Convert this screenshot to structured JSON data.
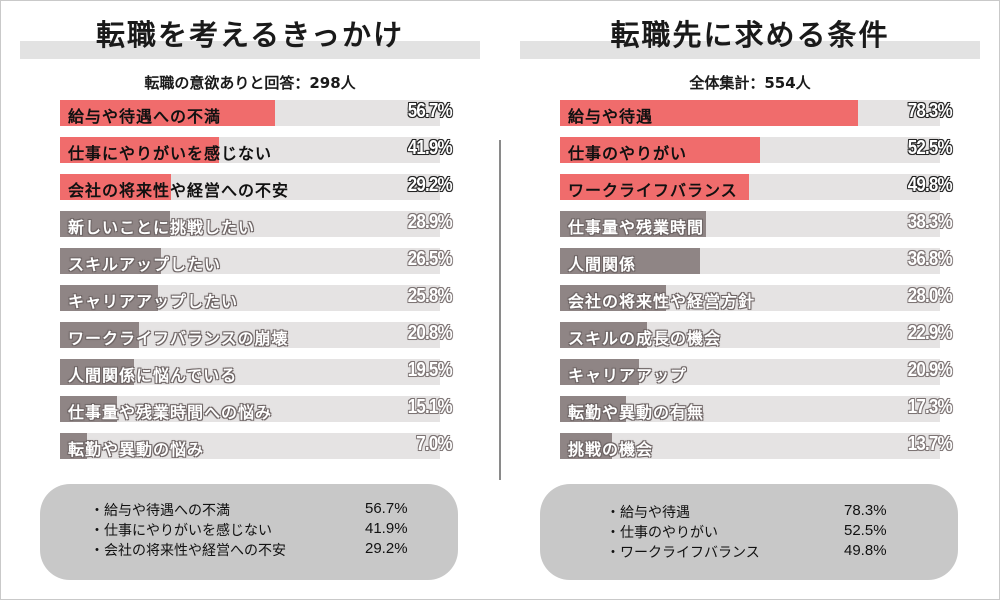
{
  "colors": {
    "highlight": "#f06c6c",
    "normal": "#8f8585",
    "track": "#e5e3e3",
    "summary_bg": "#c8c8c8"
  },
  "left": {
    "title": "転職を考えるきっかけ",
    "subtitle": "転職の意欲ありと回答：298人",
    "summary": [
      {
        "label": "・給与や待遇への不満",
        "value": "56.7%"
      },
      {
        "label": "・仕事にやりがいを感じない",
        "value": "41.9%"
      },
      {
        "label": "・会社の将来性や経営への不安",
        "value": "29.2%"
      }
    ]
  },
  "right": {
    "title": "転職先に求める条件",
    "subtitle": "全体集計：554人",
    "summary": [
      {
        "label": "・給与や待遇",
        "value": "78.3%"
      },
      {
        "label": "・仕事のやりがい",
        "value": "52.5%"
      },
      {
        "label": "・ワークライフバランス",
        "value": "49.8%"
      }
    ]
  },
  "chart_data": [
    {
      "type": "bar",
      "orientation": "horizontal",
      "title": "転職を考えるきっかけ",
      "subtitle": "転職の意欲ありと回答：298人",
      "unit": "%",
      "xlim": [
        0,
        100
      ],
      "highlight_top": 3,
      "categories": [
        "給与や待遇への不満",
        "仕事にやりがいを感じない",
        "会社の将来性や経営への不安",
        "新しいことに挑戦したい",
        "スキルアップしたい",
        "キャリアアップしたい",
        "ワークライフバランスの崩壊",
        "人間関係に悩んでいる",
        "仕事量や残業時間への悩み",
        "転勤や異動の悩み"
      ],
      "values": [
        56.7,
        41.9,
        29.2,
        28.9,
        26.5,
        25.8,
        20.8,
        19.5,
        15.1,
        7.0
      ],
      "labels": [
        "56.7%",
        "41.9%",
        "29.2%",
        "28.9%",
        "26.5%",
        "25.8%",
        "20.8%",
        "19.5%",
        "15.1%",
        "7.0%"
      ]
    },
    {
      "type": "bar",
      "orientation": "horizontal",
      "title": "転職先に求める条件",
      "subtitle": "全体集計：554人",
      "unit": "%",
      "xlim": [
        0,
        100
      ],
      "highlight_top": 3,
      "categories": [
        "給与や待遇",
        "仕事のやりがい",
        "ワークライフバランス",
        "仕事量や残業時間",
        "人間関係",
        "会社の将来性や経営方針",
        "スキルの成長の機会",
        "キャリアアップ",
        "転勤や異動の有無",
        "挑戦の機会"
      ],
      "values": [
        78.3,
        52.5,
        49.8,
        38.3,
        36.8,
        28.0,
        22.9,
        20.9,
        17.3,
        13.7
      ],
      "labels": [
        "78.3%",
        "52.5%",
        "49.8%",
        "38.3%",
        "36.8%",
        "28.0%",
        "22.9%",
        "20.9%",
        "17.3%",
        "13.7%"
      ]
    }
  ]
}
